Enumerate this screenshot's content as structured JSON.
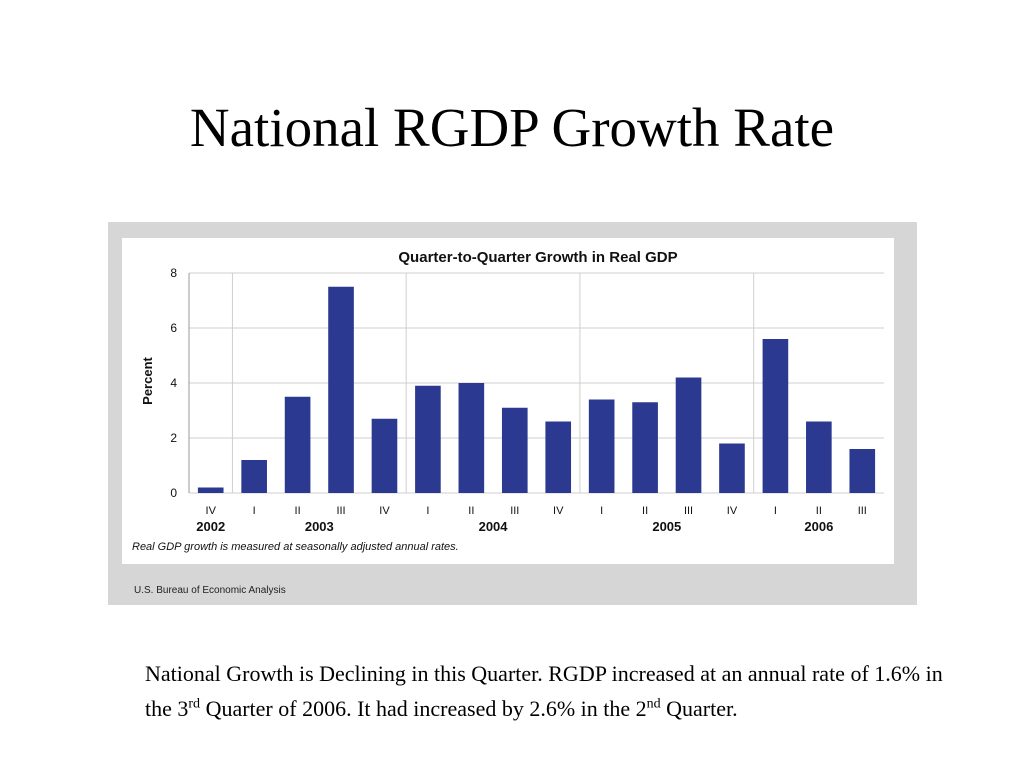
{
  "slide": {
    "title": "National RGDP Growth Rate",
    "caption": {
      "part1": "National Growth is Declining in this Quarter. RGDP increased at an annual rate of 1.6% in the 3",
      "sup1": "rd",
      "part2": " Quarter of 2006. It had increased by 2.6% in the 2",
      "sup2": "nd",
      "part3": " Quarter."
    }
  },
  "colors": {
    "bar": "#2b3990",
    "grid": "#cfcfcf",
    "frame": "#d6d6d6"
  },
  "chart_data": {
    "type": "bar",
    "title": "Quarter-to-Quarter Growth in Real GDP",
    "ylabel": "Percent",
    "xlabel": "",
    "ylim": [
      0,
      8
    ],
    "yticks": [
      "0",
      "2",
      "4",
      "6",
      "8"
    ],
    "grid": true,
    "categories": [
      "IV",
      "I",
      "II",
      "III",
      "IV",
      "I",
      "II",
      "III",
      "IV",
      "I",
      "II",
      "III",
      "IV",
      "I",
      "II",
      "III"
    ],
    "values": [
      0.2,
      1.2,
      3.5,
      7.5,
      2.7,
      3.9,
      4.0,
      3.1,
      2.6,
      3.4,
      3.3,
      4.2,
      1.8,
      5.6,
      2.6,
      1.6
    ],
    "years": [
      {
        "label": "2002",
        "start": 0,
        "end": 0
      },
      {
        "label": "2003",
        "start": 1,
        "end": 4
      },
      {
        "label": "2004",
        "start": 5,
        "end": 8
      },
      {
        "label": "2005",
        "start": 9,
        "end": 12
      },
      {
        "label": "2006",
        "start": 13,
        "end": 15
      }
    ],
    "note": "Real GDP growth is measured at seasonally adjusted annual rates.",
    "source": "U.S. Bureau of Economic Analysis"
  }
}
